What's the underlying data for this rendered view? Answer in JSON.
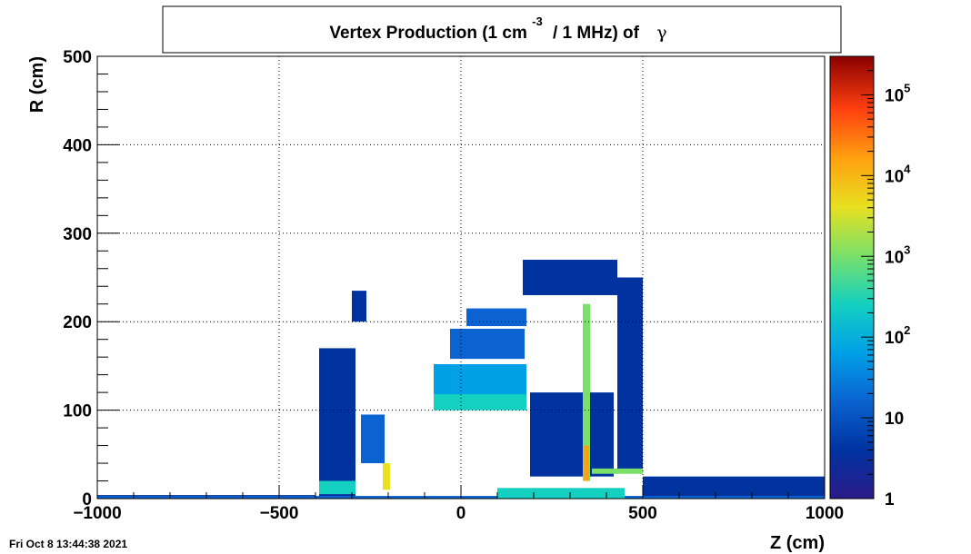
{
  "chart_data": {
    "type": "heatmap",
    "title_parts": {
      "main": "Vertex Production (1 cm",
      "exponent": "-3",
      "tail": "/ 1 MHz) of",
      "particle": "γ"
    },
    "xlabel": "Z (cm)",
    "ylabel": "R (cm)",
    "xlim": [
      -1000,
      1000
    ],
    "ylim": [
      0,
      500
    ],
    "x_ticks": [
      {
        "value": -1000,
        "label": "−1000"
      },
      {
        "value": -500,
        "label": "−500"
      },
      {
        "value": 0,
        "label": "0"
      },
      {
        "value": 500,
        "label": "500"
      },
      {
        "value": 1000,
        "label": "1000"
      }
    ],
    "y_ticks": [
      {
        "value": 0,
        "label": "0"
      },
      {
        "value": 100,
        "label": "100"
      },
      {
        "value": 200,
        "label": "200"
      },
      {
        "value": 300,
        "label": "300"
      },
      {
        "value": 400,
        "label": "400"
      },
      {
        "value": 500,
        "label": "500"
      }
    ],
    "grid": true,
    "colorbar": {
      "scale": "log",
      "range": [
        1,
        300000
      ],
      "ticks": [
        {
          "value": 1,
          "base": "1",
          "exp": ""
        },
        {
          "value": 10,
          "base": "10",
          "exp": ""
        },
        {
          "value": 100,
          "base": "10",
          "exp": "2"
        },
        {
          "value": 1000,
          "base": "10",
          "exp": "3"
        },
        {
          "value": 10000,
          "base": "10",
          "exp": "4"
        },
        {
          "value": 100000,
          "base": "10",
          "exp": "5"
        }
      ]
    },
    "regions": [
      {
        "z": [
          -1000,
          -400
        ],
        "r": [
          0,
          4
        ],
        "value": 5
      },
      {
        "z": [
          500,
          1000
        ],
        "r": [
          0,
          25
        ],
        "value": 4
      },
      {
        "z": [
          -390,
          -290
        ],
        "r": [
          0,
          170
        ],
        "value": 8
      },
      {
        "z": [
          -300,
          -260
        ],
        "r": [
          200,
          235
        ],
        "value": 4
      },
      {
        "z": [
          430,
          500
        ],
        "r": [
          30,
          250
        ],
        "value": 6
      },
      {
        "z": [
          170,
          430
        ],
        "r": [
          230,
          270
        ],
        "value": 5
      },
      {
        "z": [
          190,
          420
        ],
        "r": [
          25,
          120
        ],
        "value": 6
      },
      {
        "z": [
          -75,
          180
        ],
        "r": [
          100,
          152
        ],
        "value": 60
      },
      {
        "z": [
          -75,
          180
        ],
        "r": [
          100,
          118
        ],
        "value": 250
      },
      {
        "z": [
          -30,
          175
        ],
        "r": [
          158,
          192
        ],
        "value": 18
      },
      {
        "z": [
          15,
          180
        ],
        "r": [
          195,
          215
        ],
        "value": 10
      },
      {
        "z": [
          -275,
          -210
        ],
        "r": [
          40,
          95
        ],
        "value": 30
      },
      {
        "z": [
          -390,
          -290
        ],
        "r": [
          5,
          20
        ],
        "value": 150
      },
      {
        "z": [
          -215,
          -195
        ],
        "r": [
          10,
          40
        ],
        "value": 8000
      },
      {
        "z": [
          335,
          355
        ],
        "r": [
          20,
          220
        ],
        "value": 700
      },
      {
        "z": [
          338,
          352
        ],
        "r": [
          20,
          60
        ],
        "value": 20000
      },
      {
        "z": [
          360,
          500
        ],
        "r": [
          28,
          34
        ],
        "value": 1500
      },
      {
        "z": [
          -1000,
          1000
        ],
        "r": [
          0,
          3
        ],
        "value": 20
      },
      {
        "z": [
          100,
          450
        ],
        "r": [
          0,
          12
        ],
        "value": 500
      }
    ]
  },
  "footer": {
    "timestamp": "Fri Oct  8 13:44:38 2021"
  },
  "colors": {
    "colormap": [
      "#2c1a8a",
      "#0033a0",
      "#0a63d0",
      "#00a0e6",
      "#14d0c0",
      "#7ae06a",
      "#e8e020",
      "#ffa010",
      "#ff4010",
      "#8a0000"
    ],
    "grid": "#000000",
    "frame": "#000000"
  }
}
